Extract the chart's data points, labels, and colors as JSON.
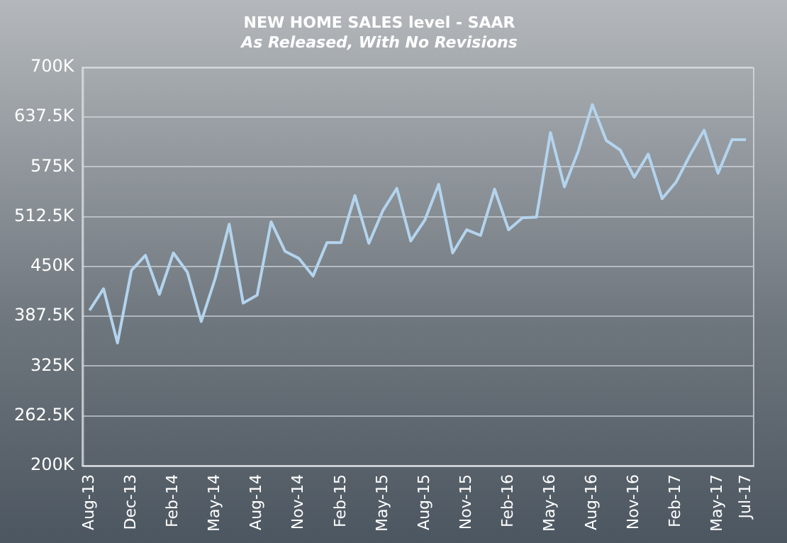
{
  "chart_data": {
    "type": "line",
    "title": "NEW HOME SALES level - SAAR",
    "subtitle": "As Released, With No Revisions",
    "categories": [
      "Aug-13",
      null,
      null,
      "Dec-13",
      null,
      null,
      "Feb-14",
      null,
      null,
      "May-14",
      null,
      null,
      "Aug-14",
      null,
      null,
      "Nov-14",
      null,
      null,
      "Feb-15",
      null,
      null,
      "May-15",
      null,
      null,
      "Aug-15",
      null,
      null,
      "Nov-15",
      null,
      null,
      "Feb-16",
      null,
      null,
      "May-16",
      null,
      null,
      "Aug-16",
      null,
      null,
      "Nov-16",
      null,
      null,
      "Feb-17",
      null,
      null,
      "May-17",
      null,
      "Jul-17"
    ],
    "series": [
      {
        "color": "#b4d4ee",
        "values": [
          395000,
          422000,
          354000,
          445000,
          464000,
          415000,
          467000,
          443000,
          381000,
          435000,
          503000,
          404000,
          414000,
          506000,
          469000,
          460000,
          438000,
          480000,
          480000,
          539000,
          479000,
          520000,
          548000,
          482000,
          508000,
          553000,
          467000,
          496000,
          489000,
          547000,
          496000,
          511000,
          512000,
          618000,
          550000,
          595000,
          653000,
          608000,
          596000,
          562000,
          591000,
          535000,
          556000,
          590000,
          621000,
          567000,
          609000,
          609000
        ]
      }
    ],
    "ylim": [
      200000,
      700000
    ],
    "yticks": [
      {
        "value": 200000,
        "label": "200K"
      },
      {
        "value": 262500,
        "label": "262.5K"
      },
      {
        "value": 325000,
        "label": "325K"
      },
      {
        "value": 387500,
        "label": "387.5K"
      },
      {
        "value": 450000,
        "label": "450K"
      },
      {
        "value": 512500,
        "label": "512.5K"
      },
      {
        "value": 575000,
        "label": "575K"
      },
      {
        "value": 637500,
        "label": "637.5K"
      },
      {
        "value": 700000,
        "label": "700K"
      }
    ],
    "grid": "y",
    "legend": false,
    "marker": "none",
    "line_style": "solid"
  }
}
